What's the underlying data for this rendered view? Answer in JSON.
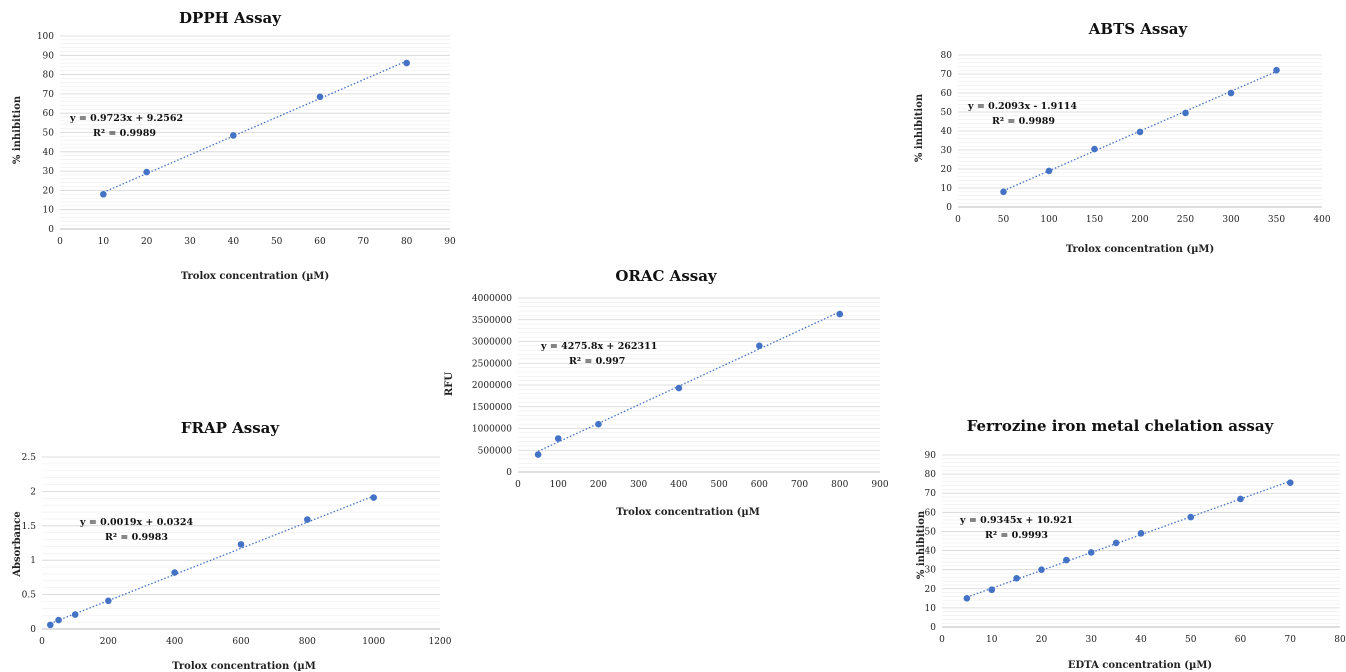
{
  "chart_data": [
    {
      "id": "dpph",
      "type": "scatter",
      "title": "DPPH Assay",
      "xlabel": "Trolox concentration (µM)",
      "ylabel": "% inhibition",
      "xlim": [
        0,
        90
      ],
      "xstep": 10,
      "ylim": [
        0,
        100
      ],
      "ystep": 10,
      "x": [
        10,
        20,
        40,
        60,
        80
      ],
      "y": [
        18,
        29.5,
        48.5,
        68.5,
        86
      ],
      "trendline": {
        "slope": 0.9723,
        "intercept": 9.2562
      },
      "equation": "y = 0.9723x + 9.2562",
      "r2": "R² = 0.9989",
      "color": "#4472c4"
    },
    {
      "id": "abts",
      "type": "scatter",
      "title": "ABTS Assay",
      "xlabel": "Trolox concentration (µM)",
      "ylabel": "% inhibition",
      "xlim": [
        0,
        400
      ],
      "xstep": 50,
      "ylim": [
        0,
        80
      ],
      "ystep": 10,
      "x": [
        50,
        100,
        150,
        200,
        250,
        300,
        350
      ],
      "y": [
        8,
        19,
        30.5,
        39.5,
        49.5,
        60,
        72
      ],
      "trendline": {
        "slope": 0.2093,
        "intercept": -1.9114
      },
      "equation": "y = 0.2093x - 1.9114",
      "r2": "R² = 0.9989",
      "color": "#4472c4"
    },
    {
      "id": "orac",
      "type": "scatter",
      "title": "ORAC Assay",
      "xlabel": "Trolox concentration (µM",
      "ylabel": "RFU",
      "xlim": [
        0,
        900
      ],
      "xstep": 100,
      "ylim": [
        0,
        4000000
      ],
      "ystep": 500000,
      "x": [
        50,
        100,
        200,
        400,
        600,
        800
      ],
      "y": [
        400000,
        770000,
        1100000,
        1930000,
        2900000,
        3630000
      ],
      "trendline": {
        "slope": 4275.8,
        "intercept": 262311
      },
      "equation": "y = 4275.8x + 262311",
      "r2": "R² = 0.997",
      "color": "#4472c4"
    },
    {
      "id": "frap",
      "type": "scatter",
      "title": "FRAP Assay",
      "xlabel": "Trolox concentration (µM",
      "ylabel": "Absorbance",
      "xlim": [
        0,
        1200
      ],
      "xstep": 200,
      "ylim": [
        0,
        2.5
      ],
      "ystep": 0.5,
      "x": [
        25,
        50,
        100,
        200,
        400,
        600,
        800,
        1000
      ],
      "y": [
        0.06,
        0.13,
        0.21,
        0.41,
        0.82,
        1.23,
        1.59,
        1.91
      ],
      "trendline": {
        "slope": 0.0019,
        "intercept": 0.0324
      },
      "equation": "y = 0.0019x + 0.0324",
      "r2": "R² = 0.9983",
      "color": "#4472c4"
    },
    {
      "id": "ferrozine",
      "type": "scatter",
      "title": "Ferrozine iron metal chelation assay",
      "xlabel": "EDTA concentration (µM)",
      "ylabel": "% inhibition",
      "xlim": [
        0,
        80
      ],
      "xstep": 10,
      "ylim": [
        0,
        90
      ],
      "ystep": 10,
      "x": [
        5,
        10,
        15,
        20,
        25,
        30,
        35,
        40,
        50,
        60,
        70
      ],
      "y": [
        15,
        19.5,
        25.5,
        30,
        35,
        39,
        44,
        49,
        57.5,
        67,
        75.5
      ],
      "trendline": {
        "slope": 0.9345,
        "intercept": 10.921
      },
      "equation": "y = 0.9345x + 10.921",
      "r2": "R² = 0.9993",
      "color": "#4472c4"
    }
  ]
}
